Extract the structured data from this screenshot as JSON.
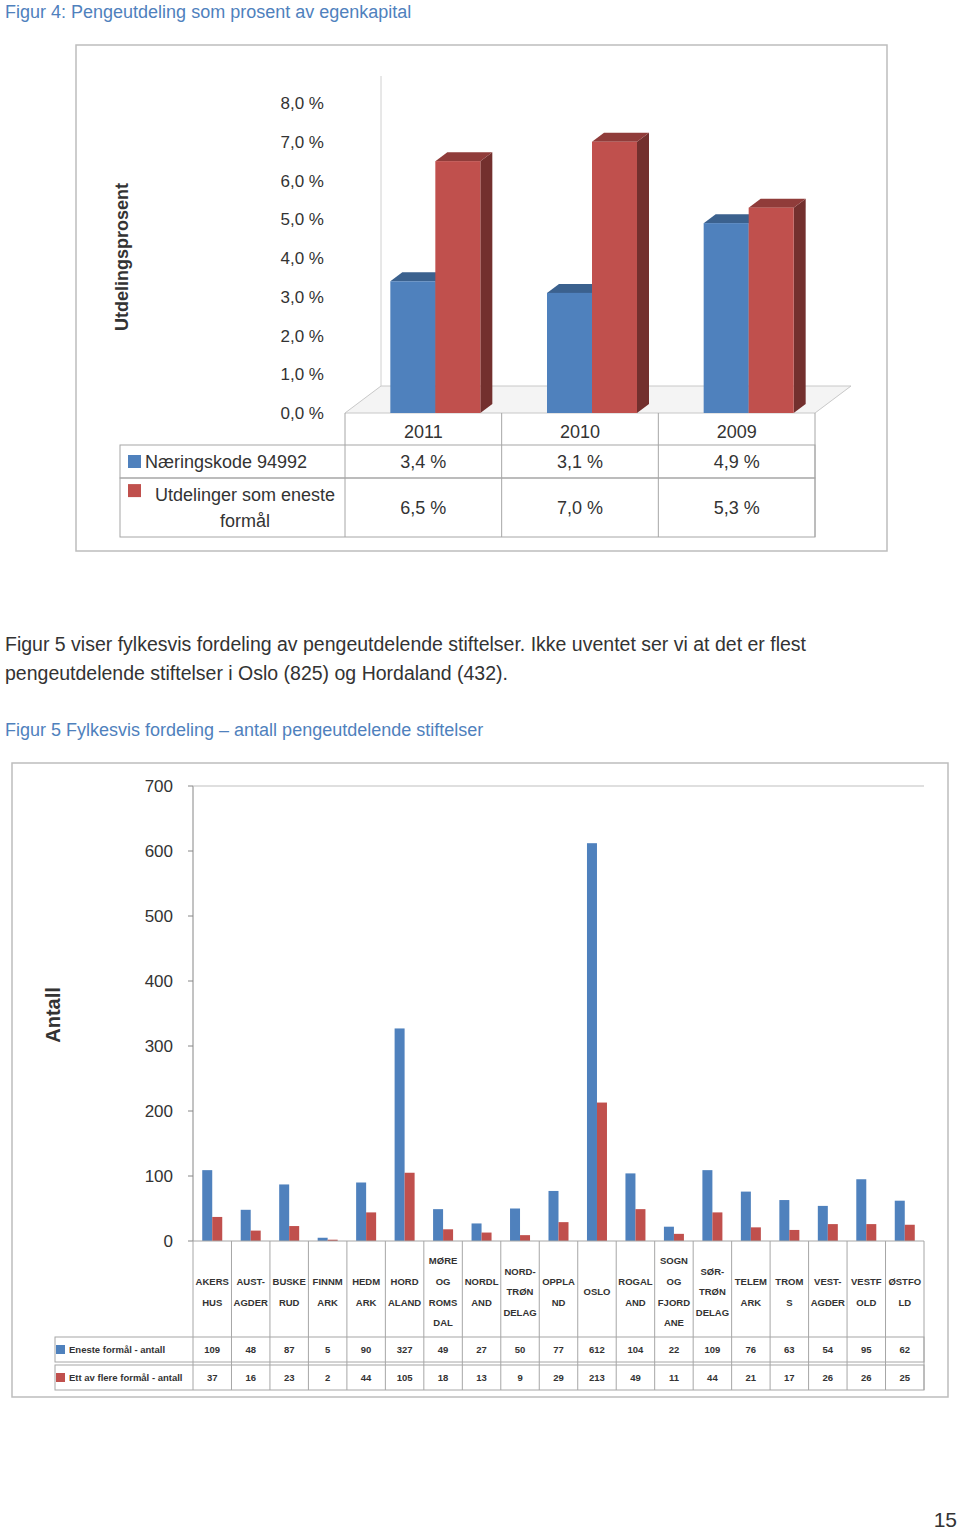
{
  "chart_data": [
    {
      "type": "bar",
      "title": "Figur 4: Pengeutdeling som prosent av egenkapital",
      "y_label": "Utdelingsprosent",
      "categories": [
        "2011",
        "2010",
        "2009"
      ],
      "series": [
        {
          "name": "Næringskode 94992",
          "color": "#4f81bd",
          "values": [
            3.4,
            3.1,
            4.9
          ],
          "value_labels": [
            "3,4 %",
            "3,1 %",
            "4,9 %"
          ]
        },
        {
          "name": "Utdelinger som eneste formål",
          "color": "#c0504d",
          "values": [
            6.5,
            7.0,
            5.3
          ],
          "value_labels": [
            "6,5 %",
            "7,0 %",
            "5,3 %"
          ]
        }
      ],
      "ylim": [
        0,
        8
      ],
      "yticks": [
        {
          "value": 0,
          "label": "0,0 %"
        },
        {
          "value": 1,
          "label": "1,0 %"
        },
        {
          "value": 2,
          "label": "2,0 %"
        },
        {
          "value": 3,
          "label": "3,0 %"
        },
        {
          "value": 4,
          "label": "4,0 %"
        },
        {
          "value": 5,
          "label": "5,0 %"
        },
        {
          "value": 6,
          "label": "6,0 %"
        },
        {
          "value": 7,
          "label": "7,0 %"
        },
        {
          "value": 8,
          "label": "8,0 %"
        }
      ],
      "grid": false,
      "data_labels": true
    },
    {
      "type": "bar",
      "title": "Figur 5 Fylkesvis fordeling – antall pengeutdelende stiftelser",
      "y_label": "Antall",
      "categories": [
        "AKERS\nHUS",
        "AUST-\nAGDER",
        "BUSKE\nRUD",
        "FINNM\nARK",
        "HEDM\nARK",
        "HORD\nALAND",
        "MØRE\nOG\nROMS\nDAL",
        "NORDL\nAND",
        "NORD-\nTRØN\nDELAG",
        "OPPLA\nND",
        "OSLO",
        "ROGAL\nAND",
        "SOGN\nOG\nFJORD\nANE",
        "SØR-\nTRØN\nDELAG",
        "TELEM\nARK",
        "TROM\nS",
        "VEST-\nAGDER",
        "VESTF\nOLD",
        "ØSTFO\nLD"
      ],
      "series": [
        {
          "name": "Eneste formål - antall",
          "color": "#4f81bd",
          "values": [
            109,
            48,
            87,
            5,
            90,
            327,
            49,
            27,
            50,
            77,
            612,
            104,
            22,
            109,
            76,
            63,
            54,
            95,
            62
          ]
        },
        {
          "name": "Ett av flere formål - antall",
          "color": "#c0504d",
          "values": [
            37,
            16,
            23,
            2,
            44,
            105,
            18,
            13,
            9,
            29,
            213,
            49,
            11,
            44,
            21,
            17,
            26,
            26,
            25
          ]
        }
      ],
      "ylim": [
        0,
        700
      ],
      "yticks": [
        0,
        100,
        200,
        300,
        400,
        500,
        600,
        700
      ],
      "grid": false,
      "data_labels": true
    }
  ],
  "text": {
    "paragraph": "Figur 5 viser fylkesvis fordeling av pengeutdelende stiftelser. Ikke uventet ser vi at det er flest pengeutdelende stiftelser i Oslo (825) og Hordaland (432).",
    "page_number": "15"
  }
}
